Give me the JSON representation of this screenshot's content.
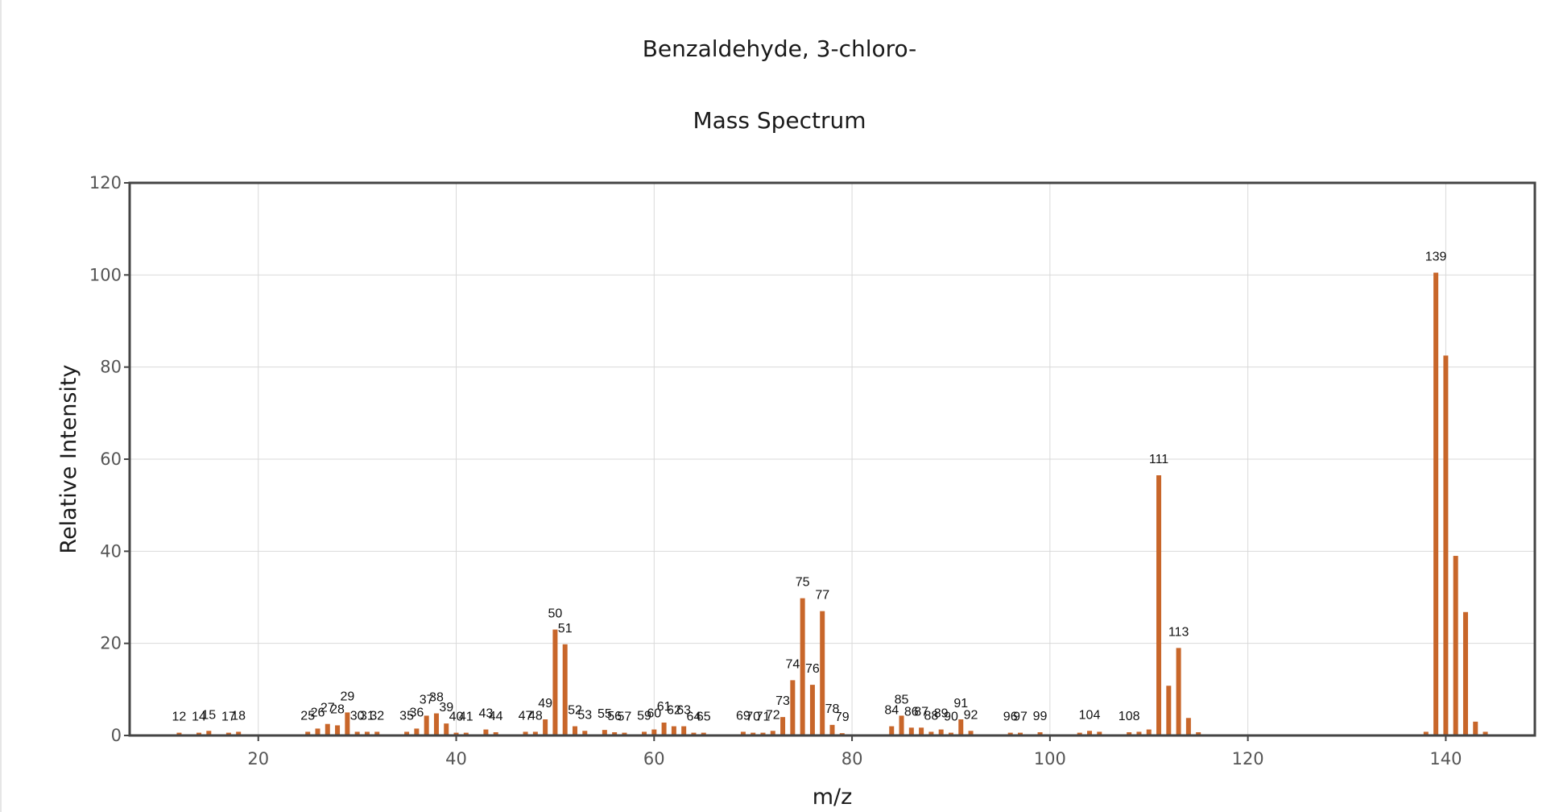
{
  "chart_data": {
    "type": "bar",
    "title": "Benzaldehyde, 3-chloro-",
    "subtitle": "Mass Spectrum",
    "xlabel": "m/z",
    "ylabel": "Relative Intensity",
    "xlim": [
      7,
      149
    ],
    "ylim": [
      0,
      120
    ],
    "xticks": [
      20,
      40,
      60,
      80,
      100,
      120,
      140
    ],
    "yticks": [
      0,
      20,
      40,
      60,
      80,
      100,
      120
    ],
    "grid": true,
    "legend": "none",
    "bar_color": "#c8662a",
    "peaks": [
      {
        "mz": 12,
        "intensity": 0.6,
        "label": "12"
      },
      {
        "mz": 14,
        "intensity": 0.6,
        "label": "14"
      },
      {
        "mz": 15,
        "intensity": 1.0,
        "label": "15"
      },
      {
        "mz": 17,
        "intensity": 0.6,
        "label": "17"
      },
      {
        "mz": 18,
        "intensity": 0.8,
        "label": "18"
      },
      {
        "mz": 25,
        "intensity": 0.8,
        "label": "25"
      },
      {
        "mz": 26,
        "intensity": 1.5,
        "label": "26"
      },
      {
        "mz": 27,
        "intensity": 2.5,
        "label": "27"
      },
      {
        "mz": 28,
        "intensity": 2.2,
        "label": "28"
      },
      {
        "mz": 29,
        "intensity": 5.0,
        "label": "29"
      },
      {
        "mz": 30,
        "intensity": 0.8,
        "label": "30"
      },
      {
        "mz": 31,
        "intensity": 0.8,
        "label": "31"
      },
      {
        "mz": 32,
        "intensity": 0.8,
        "label": "32"
      },
      {
        "mz": 35,
        "intensity": 0.8,
        "label": "35"
      },
      {
        "mz": 36,
        "intensity": 1.5,
        "label": "36"
      },
      {
        "mz": 37,
        "intensity": 4.3,
        "label": "37"
      },
      {
        "mz": 38,
        "intensity": 4.8,
        "label": "38"
      },
      {
        "mz": 39,
        "intensity": 2.6,
        "label": "39"
      },
      {
        "mz": 40,
        "intensity": 0.6,
        "label": "40"
      },
      {
        "mz": 41,
        "intensity": 0.6,
        "label": "41"
      },
      {
        "mz": 43,
        "intensity": 1.3,
        "label": "43"
      },
      {
        "mz": 44,
        "intensity": 0.7,
        "label": "44"
      },
      {
        "mz": 47,
        "intensity": 0.8,
        "label": "47"
      },
      {
        "mz": 48,
        "intensity": 0.8,
        "label": "48"
      },
      {
        "mz": 49,
        "intensity": 3.5,
        "label": "49"
      },
      {
        "mz": 50,
        "intensity": 23.0,
        "label": "50"
      },
      {
        "mz": 51,
        "intensity": 19.8,
        "label": "51"
      },
      {
        "mz": 52,
        "intensity": 2.0,
        "label": "52"
      },
      {
        "mz": 53,
        "intensity": 1.0,
        "label": "53"
      },
      {
        "mz": 55,
        "intensity": 1.2,
        "label": "55"
      },
      {
        "mz": 56,
        "intensity": 0.7,
        "label": "56"
      },
      {
        "mz": 57,
        "intensity": 0.6,
        "label": "57"
      },
      {
        "mz": 59,
        "intensity": 0.8,
        "label": "59"
      },
      {
        "mz": 60,
        "intensity": 1.3,
        "label": "60"
      },
      {
        "mz": 61,
        "intensity": 2.8,
        "label": "61"
      },
      {
        "mz": 62,
        "intensity": 2.0,
        "label": "62"
      },
      {
        "mz": 63,
        "intensity": 2.0,
        "label": "63"
      },
      {
        "mz": 64,
        "intensity": 0.6,
        "label": "64"
      },
      {
        "mz": 65,
        "intensity": 0.6,
        "label": "65"
      },
      {
        "mz": 69,
        "intensity": 0.8,
        "label": "69"
      },
      {
        "mz": 70,
        "intensity": 0.6,
        "label": "70"
      },
      {
        "mz": 71,
        "intensity": 0.6,
        "label": "71"
      },
      {
        "mz": 72,
        "intensity": 1.0,
        "label": "72"
      },
      {
        "mz": 73,
        "intensity": 4.0,
        "label": "73"
      },
      {
        "mz": 74,
        "intensity": 12.0,
        "label": "74"
      },
      {
        "mz": 75,
        "intensity": 29.8,
        "label": "75"
      },
      {
        "mz": 76,
        "intensity": 11.0,
        "label": "76"
      },
      {
        "mz": 77,
        "intensity": 27.0,
        "label": "77"
      },
      {
        "mz": 78,
        "intensity": 2.3,
        "label": "78"
      },
      {
        "mz": 79,
        "intensity": 0.5,
        "label": "79"
      },
      {
        "mz": 84,
        "intensity": 2.0,
        "label": "84"
      },
      {
        "mz": 85,
        "intensity": 4.3,
        "label": "85"
      },
      {
        "mz": 86,
        "intensity": 1.7,
        "label": "86"
      },
      {
        "mz": 87,
        "intensity": 1.7,
        "label": "87"
      },
      {
        "mz": 88,
        "intensity": 0.8,
        "label": "88"
      },
      {
        "mz": 89,
        "intensity": 1.3,
        "label": "89"
      },
      {
        "mz": 90,
        "intensity": 0.6,
        "label": "90"
      },
      {
        "mz": 91,
        "intensity": 3.5,
        "label": "91"
      },
      {
        "mz": 92,
        "intensity": 1.0,
        "label": "92"
      },
      {
        "mz": 96,
        "intensity": 0.6,
        "label": "96"
      },
      {
        "mz": 97,
        "intensity": 0.6,
        "label": "97"
      },
      {
        "mz": 99,
        "intensity": 0.7,
        "label": "99"
      },
      {
        "mz": 103,
        "intensity": 0.6,
        "label": ""
      },
      {
        "mz": 104,
        "intensity": 1.0,
        "label": "104"
      },
      {
        "mz": 105,
        "intensity": 0.8,
        "label": ""
      },
      {
        "mz": 108,
        "intensity": 0.7,
        "label": "108"
      },
      {
        "mz": 109,
        "intensity": 0.8,
        "label": ""
      },
      {
        "mz": 110,
        "intensity": 1.3,
        "label": ""
      },
      {
        "mz": 111,
        "intensity": 56.5,
        "label": "111"
      },
      {
        "mz": 112,
        "intensity": 10.8,
        "label": ""
      },
      {
        "mz": 113,
        "intensity": 19.0,
        "label": "113"
      },
      {
        "mz": 114,
        "intensity": 3.8,
        "label": ""
      },
      {
        "mz": 115,
        "intensity": 0.7,
        "label": ""
      },
      {
        "mz": 138,
        "intensity": 0.8,
        "label": ""
      },
      {
        "mz": 139,
        "intensity": 100.5,
        "label": "139"
      },
      {
        "mz": 140,
        "intensity": 82.5,
        "label": ""
      },
      {
        "mz": 141,
        "intensity": 39.0,
        "label": ""
      },
      {
        "mz": 142,
        "intensity": 26.8,
        "label": ""
      },
      {
        "mz": 143,
        "intensity": 3.0,
        "label": ""
      },
      {
        "mz": 144,
        "intensity": 0.8,
        "label": ""
      }
    ]
  }
}
